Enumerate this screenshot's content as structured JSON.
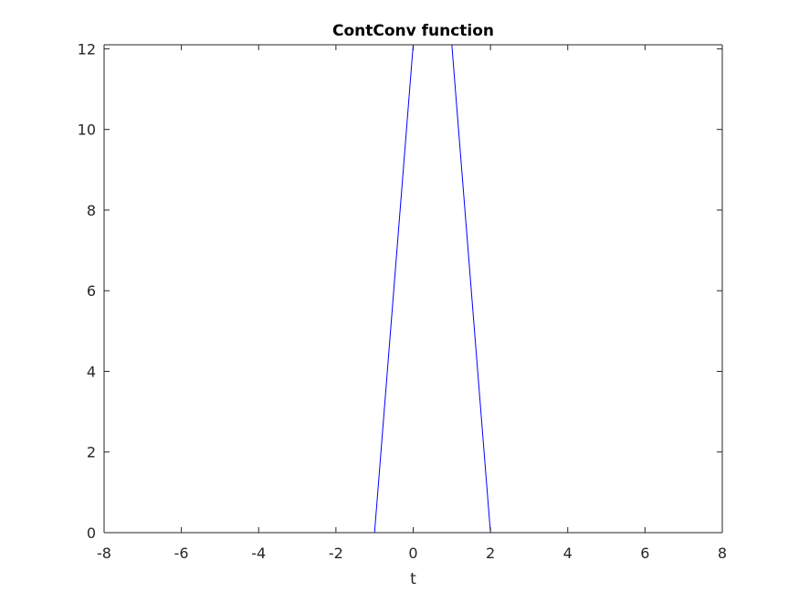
{
  "chart_data": {
    "type": "line",
    "title": "ContConv function",
    "xlabel": "t",
    "ylabel": "",
    "xlim": [
      -8,
      8
    ],
    "ylim": [
      0,
      12.1
    ],
    "grid": false,
    "xticks": [
      -8,
      -6,
      -4,
      -2,
      0,
      2,
      4,
      6,
      8
    ],
    "xtick_labels": [
      "-8",
      "-6",
      "-4",
      "-2",
      "0",
      "2",
      "4",
      "6",
      "8"
    ],
    "yticks": [
      0,
      2,
      4,
      6,
      8,
      10,
      12
    ],
    "ytick_labels": [
      "0",
      "2",
      "4",
      "6",
      "8",
      "10",
      "12"
    ],
    "series": [
      {
        "color": "#0000ff",
        "x": [
          -8,
          -1,
          0,
          1,
          2,
          8
        ],
        "y": [
          0,
          0,
          12.1,
          12.1,
          0,
          0
        ]
      }
    ]
  }
}
